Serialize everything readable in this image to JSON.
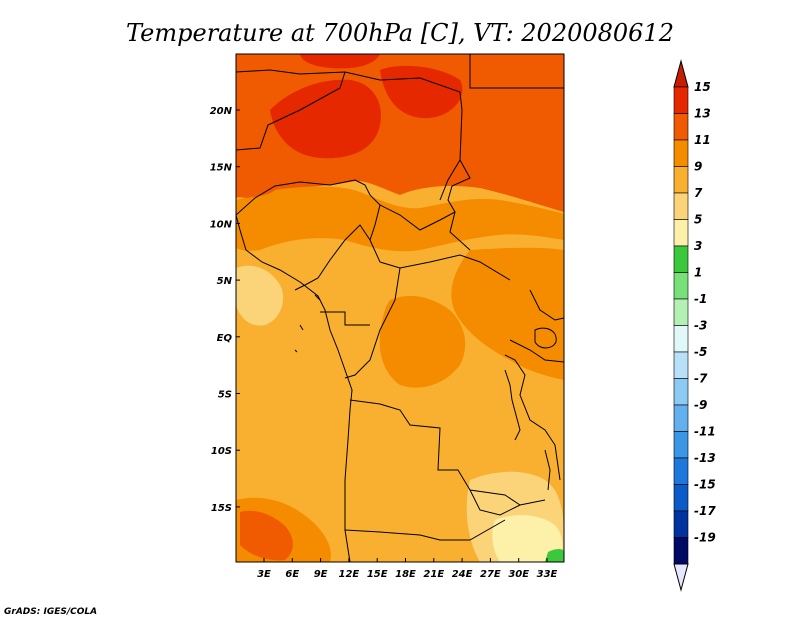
{
  "title": "Temperature at 700hPa [C], VT: 2020080612",
  "credit": "GrADS: IGES/COLA",
  "map": {
    "lon_labels": [
      "3E",
      "6E",
      "9E",
      "12E",
      "15E",
      "18E",
      "21E",
      "24E",
      "27E",
      "30E",
      "33E"
    ],
    "lat_labels": [
      "20N",
      "15N",
      "10N",
      "5N",
      "EQ",
      "5S",
      "10S",
      "15S"
    ]
  },
  "colorbar": {
    "labels": [
      "15",
      "13",
      "11",
      "9",
      "7",
      "5",
      "3",
      "1",
      "-1",
      "-3",
      "-5",
      "-7",
      "-9",
      "-11",
      "-13",
      "-15",
      "-17",
      "-19"
    ],
    "colors": [
      "#e62800",
      "#f05a00",
      "#f58c00",
      "#f9b030",
      "#fbd47a",
      "#fdf0a8",
      "#3cc83c",
      "#78e078",
      "#b4f0b4",
      "#e0f8f8",
      "#b8e0f8",
      "#8ccaf4",
      "#64b0ee",
      "#3c96e6",
      "#1e78dc",
      "#0a5ac8",
      "#0032a0",
      "#000a64"
    ],
    "top_arrow_color": "#c81e00",
    "bottom_arrow_color": "#e6e6ff"
  }
}
